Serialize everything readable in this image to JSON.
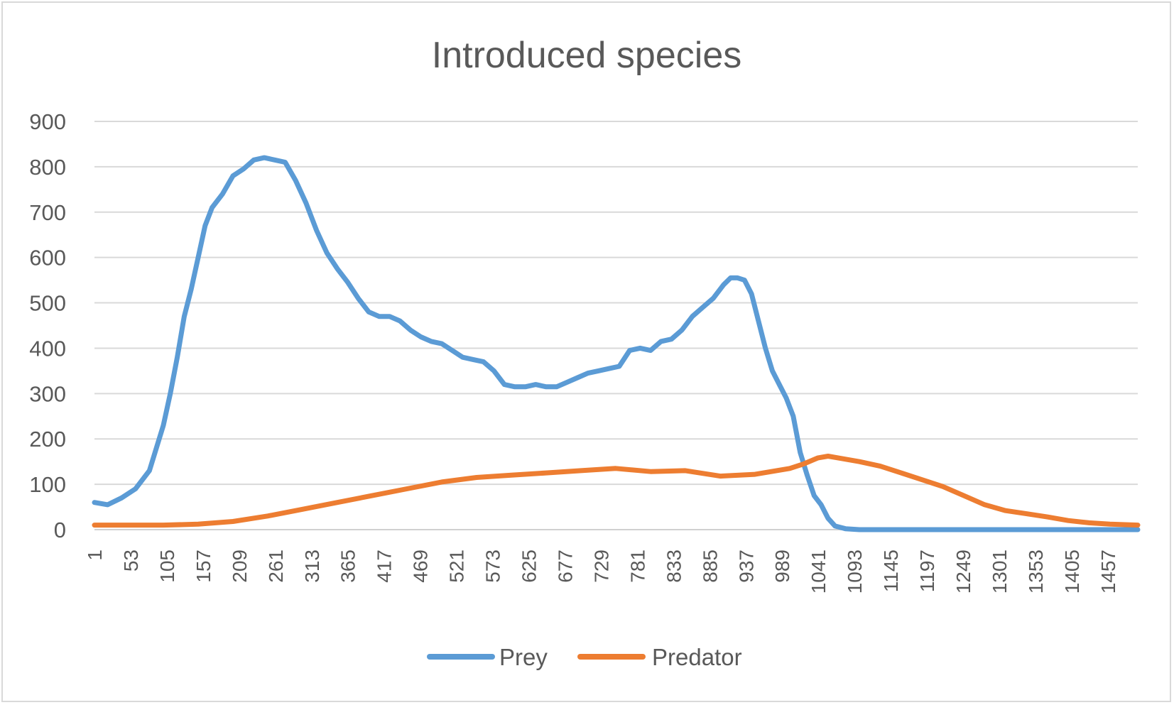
{
  "chart_data": {
    "type": "line",
    "title": "Introduced species",
    "xlabel": "",
    "ylabel": "",
    "ylim": [
      0,
      900
    ],
    "yticks": [
      0,
      100,
      200,
      300,
      400,
      500,
      600,
      700,
      800,
      900
    ],
    "xlim": [
      1,
      1500
    ],
    "xticks": [
      1,
      53,
      105,
      157,
      209,
      261,
      313,
      365,
      417,
      469,
      521,
      573,
      625,
      677,
      729,
      781,
      833,
      885,
      937,
      989,
      1041,
      1093,
      1145,
      1197,
      1249,
      1301,
      1353,
      1405,
      1457
    ],
    "grid": true,
    "legend": "bottom",
    "series": [
      {
        "name": "Prey",
        "color": "#5b9bd5",
        "points": [
          [
            1,
            60
          ],
          [
            20,
            55
          ],
          [
            40,
            70
          ],
          [
            60,
            90
          ],
          [
            80,
            130
          ],
          [
            100,
            230
          ],
          [
            110,
            300
          ],
          [
            120,
            380
          ],
          [
            130,
            470
          ],
          [
            140,
            530
          ],
          [
            150,
            600
          ],
          [
            160,
            670
          ],
          [
            170,
            710
          ],
          [
            185,
            740
          ],
          [
            200,
            780
          ],
          [
            215,
            795
          ],
          [
            230,
            815
          ],
          [
            245,
            820
          ],
          [
            260,
            815
          ],
          [
            275,
            810
          ],
          [
            290,
            770
          ],
          [
            305,
            720
          ],
          [
            320,
            660
          ],
          [
            335,
            610
          ],
          [
            350,
            575
          ],
          [
            365,
            545
          ],
          [
            380,
            510
          ],
          [
            395,
            480
          ],
          [
            410,
            470
          ],
          [
            425,
            470
          ],
          [
            440,
            460
          ],
          [
            455,
            440
          ],
          [
            470,
            425
          ],
          [
            485,
            415
          ],
          [
            500,
            410
          ],
          [
            515,
            395
          ],
          [
            530,
            380
          ],
          [
            545,
            375
          ],
          [
            560,
            370
          ],
          [
            575,
            350
          ],
          [
            590,
            320
          ],
          [
            605,
            315
          ],
          [
            620,
            315
          ],
          [
            635,
            320
          ],
          [
            650,
            315
          ],
          [
            665,
            315
          ],
          [
            680,
            325
          ],
          [
            695,
            335
          ],
          [
            710,
            345
          ],
          [
            725,
            350
          ],
          [
            740,
            355
          ],
          [
            755,
            360
          ],
          [
            770,
            395
          ],
          [
            785,
            400
          ],
          [
            800,
            395
          ],
          [
            815,
            415
          ],
          [
            830,
            420
          ],
          [
            845,
            440
          ],
          [
            860,
            470
          ],
          [
            875,
            490
          ],
          [
            890,
            510
          ],
          [
            905,
            540
          ],
          [
            915,
            555
          ],
          [
            925,
            555
          ],
          [
            935,
            550
          ],
          [
            945,
            520
          ],
          [
            955,
            460
          ],
          [
            965,
            400
          ],
          [
            975,
            350
          ],
          [
            985,
            320
          ],
          [
            995,
            290
          ],
          [
            1005,
            250
          ],
          [
            1015,
            170
          ],
          [
            1025,
            120
          ],
          [
            1035,
            75
          ],
          [
            1045,
            55
          ],
          [
            1055,
            25
          ],
          [
            1065,
            8
          ],
          [
            1080,
            2
          ],
          [
            1100,
            0
          ],
          [
            1150,
            0
          ],
          [
            1200,
            0
          ],
          [
            1300,
            0
          ],
          [
            1400,
            0
          ],
          [
            1500,
            0
          ]
        ]
      },
      {
        "name": "Predator",
        "color": "#ed7d31",
        "points": [
          [
            1,
            10
          ],
          [
            50,
            10
          ],
          [
            100,
            10
          ],
          [
            150,
            12
          ],
          [
            200,
            18
          ],
          [
            250,
            30
          ],
          [
            300,
            45
          ],
          [
            350,
            60
          ],
          [
            400,
            75
          ],
          [
            450,
            90
          ],
          [
            500,
            105
          ],
          [
            550,
            115
          ],
          [
            600,
            120
          ],
          [
            650,
            125
          ],
          [
            700,
            130
          ],
          [
            750,
            135
          ],
          [
            800,
            128
          ],
          [
            850,
            130
          ],
          [
            900,
            118
          ],
          [
            950,
            122
          ],
          [
            1000,
            135
          ],
          [
            1020,
            145
          ],
          [
            1040,
            158
          ],
          [
            1055,
            162
          ],
          [
            1070,
            158
          ],
          [
            1100,
            150
          ],
          [
            1130,
            140
          ],
          [
            1160,
            125
          ],
          [
            1190,
            110
          ],
          [
            1220,
            95
          ],
          [
            1250,
            75
          ],
          [
            1280,
            55
          ],
          [
            1310,
            42
          ],
          [
            1340,
            35
          ],
          [
            1370,
            28
          ],
          [
            1400,
            20
          ],
          [
            1430,
            15
          ],
          [
            1460,
            12
          ],
          [
            1500,
            10
          ]
        ]
      }
    ]
  }
}
